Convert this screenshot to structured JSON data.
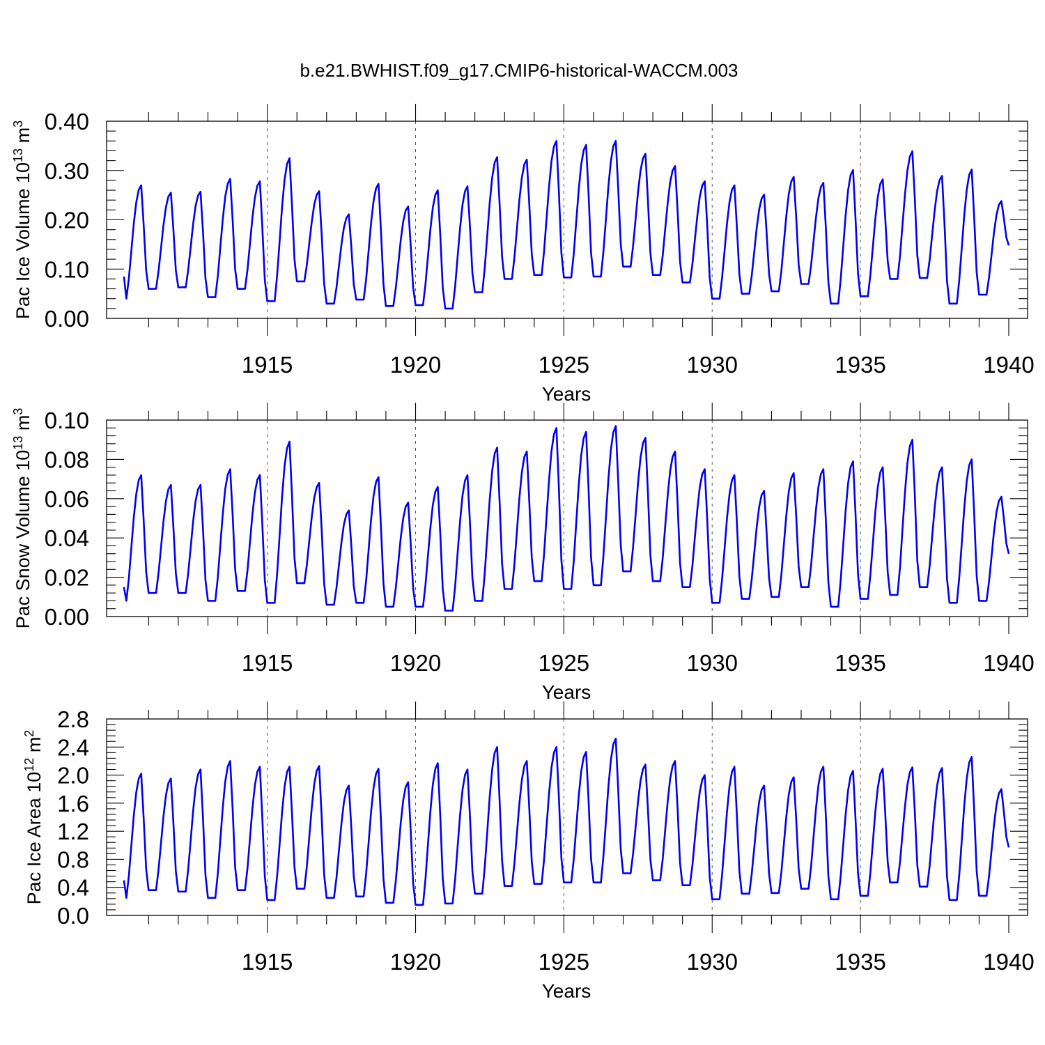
{
  "title": "b.e21.BWHIST.f09_g17.CMIP6-historical-WACCM.003",
  "chart_data": [
    {
      "type": "line",
      "ylabel": "Pac Ice Volume 10",
      "ylabel_exp": "13",
      "ylabel_unit": "m",
      "ylabel_unit_exp": "3",
      "xlabel": "Years",
      "xlim": [
        1910.17,
        1940
      ],
      "ylim": [
        0,
        0.4
      ],
      "yticks": [
        "0.00",
        "0.10",
        "0.20",
        "0.30",
        "0.40"
      ],
      "xticks": [
        "1915",
        "1920",
        "1925",
        "1930",
        "1935",
        "1940"
      ],
      "grid": "dashed verticals at 1915, 1920, 1925, 1930, 1935",
      "color": "#0000f0",
      "series": [
        {
          "name": "",
          "peaks": [
            0.27,
            0.255,
            0.257,
            0.283,
            0.278,
            0.325,
            0.258,
            0.211,
            0.273,
            0.227,
            0.26,
            0.268,
            0.327,
            0.322,
            0.36,
            0.352,
            0.36,
            0.334,
            0.309,
            0.278,
            0.27,
            0.251,
            0.287,
            0.275,
            0.301,
            0.282,
            0.339,
            0.289,
            0.302,
            0.238
          ],
          "troughs": [
            0.04,
            0.06,
            0.063,
            0.043,
            0.06,
            0.035,
            0.075,
            0.03,
            0.038,
            0.025,
            0.027,
            0.02,
            0.053,
            0.08,
            0.088,
            0.083,
            0.085,
            0.105,
            0.088,
            0.073,
            0.04,
            0.05,
            0.055,
            0.07,
            0.03,
            0.045,
            0.08,
            0.082,
            0.03,
            0.048
          ],
          "start": 0.085,
          "end": 0.148
        }
      ]
    },
    {
      "type": "line",
      "ylabel": "Pac Snow Volume 10",
      "ylabel_exp": "13",
      "ylabel_unit": "m",
      "ylabel_unit_exp": "3",
      "xlabel": "Years",
      "xlim": [
        1910.17,
        1940
      ],
      "ylim": [
        0,
        0.1
      ],
      "yticks": [
        "0.00",
        "0.02",
        "0.04",
        "0.06",
        "0.08",
        "0.10"
      ],
      "xticks": [
        "1915",
        "1920",
        "1925",
        "1930",
        "1935",
        "1940"
      ],
      "grid": "dashed verticals at 1915, 1920, 1925, 1930, 1935",
      "color": "#0000f0",
      "series": [
        {
          "name": "",
          "peaks": [
            0.072,
            0.067,
            0.067,
            0.075,
            0.072,
            0.089,
            0.068,
            0.054,
            0.071,
            0.058,
            0.066,
            0.072,
            0.086,
            0.084,
            0.096,
            0.094,
            0.097,
            0.091,
            0.084,
            0.075,
            0.072,
            0.064,
            0.073,
            0.075,
            0.079,
            0.076,
            0.09,
            0.076,
            0.08,
            0.061
          ],
          "troughs": [
            0.008,
            0.012,
            0.012,
            0.008,
            0.013,
            0.007,
            0.017,
            0.006,
            0.007,
            0.005,
            0.005,
            0.003,
            0.008,
            0.014,
            0.018,
            0.014,
            0.016,
            0.023,
            0.018,
            0.015,
            0.007,
            0.009,
            0.01,
            0.015,
            0.005,
            0.009,
            0.011,
            0.015,
            0.007,
            0.008
          ],
          "start": 0.015,
          "end": 0.032
        }
      ]
    },
    {
      "type": "line",
      "ylabel": "Pac Ice Area 10",
      "ylabel_exp": "12",
      "ylabel_unit": "m",
      "ylabel_unit_exp": "2",
      "xlabel": "Years",
      "xlim": [
        1910.17,
        1940
      ],
      "ylim": [
        0,
        2.8
      ],
      "yticks": [
        "0.0",
        "0.4",
        "0.8",
        "1.2",
        "1.6",
        "2.0",
        "2.4",
        "2.8"
      ],
      "xticks": [
        "1915",
        "1920",
        "1925",
        "1930",
        "1935",
        "1940"
      ],
      "grid": "dashed verticals at 1915, 1920, 1925, 1930, 1935",
      "color": "#0000f0",
      "series": [
        {
          "name": "",
          "peaks": [
            2.02,
            1.95,
            2.08,
            2.2,
            2.12,
            2.12,
            2.13,
            1.85,
            2.09,
            1.9,
            2.17,
            2.08,
            2.4,
            2.2,
            2.4,
            2.33,
            2.52,
            2.15,
            2.2,
            2.0,
            2.12,
            1.85,
            1.97,
            2.12,
            2.06,
            2.09,
            2.11,
            2.1,
            2.26,
            1.8
          ],
          "troughs": [
            0.25,
            0.36,
            0.34,
            0.25,
            0.36,
            0.22,
            0.38,
            0.25,
            0.27,
            0.18,
            0.15,
            0.17,
            0.31,
            0.42,
            0.45,
            0.47,
            0.47,
            0.6,
            0.5,
            0.43,
            0.23,
            0.31,
            0.32,
            0.38,
            0.23,
            0.28,
            0.47,
            0.41,
            0.22,
            0.28
          ],
          "start": 0.5,
          "end": 0.97
        }
      ]
    }
  ]
}
